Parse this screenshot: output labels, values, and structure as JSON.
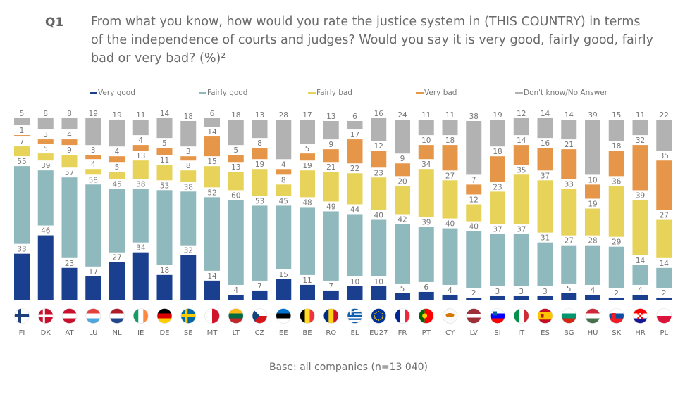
{
  "question": {
    "number": "Q1",
    "text": "From what you know, how would you rate the justice system in (THIS COUNTRY) in terms of the independence of courts and judges? Would you say it is very good, fairly good, fairly bad or very bad? (%)²"
  },
  "footnote": "Base: all companies (n=13 040)",
  "colors": {
    "very_good": "#1a3f8f",
    "fairly_good": "#8fb9bd",
    "fairly_bad": "#e8d35a",
    "very_bad": "#e69648",
    "dont_know": "#b2b2b2",
    "label": "#777777"
  },
  "chart_data": {
    "type": "bar",
    "stacked": true,
    "title": "From what you know, how would you rate the justice system in (THIS COUNTRY) in terms of the independence of courts and judges? Would you say it is very good, fairly good, fairly bad or very bad? (%)",
    "xlabel": "",
    "ylabel": "%",
    "ylim": [
      0,
      100
    ],
    "grid": false,
    "legend_position": "top",
    "categories": [
      "FI",
      "DK",
      "AT",
      "LU",
      "NL",
      "IE",
      "DE",
      "SE",
      "MT",
      "LT",
      "CZ",
      "EE",
      "BE",
      "RO",
      "EL",
      "EU27",
      "FR",
      "PT",
      "CY",
      "LV",
      "SI",
      "IT",
      "ES",
      "BG",
      "HU",
      "SK",
      "HR",
      "PL"
    ],
    "series": [
      {
        "name": "Very good",
        "key": "very_good",
        "values": [
          33,
          46,
          23,
          17,
          27,
          34,
          18,
          32,
          14,
          4,
          7,
          15,
          11,
          7,
          10,
          10,
          5,
          6,
          4,
          2,
          3,
          3,
          3,
          5,
          4,
          2,
          4,
          2
        ]
      },
      {
        "name": "Fairly good",
        "key": "fairly_good",
        "values": [
          55,
          39,
          57,
          58,
          45,
          38,
          53,
          38,
          52,
          60,
          53,
          45,
          48,
          49,
          44,
          40,
          42,
          39,
          40,
          40,
          37,
          37,
          31,
          27,
          28,
          29,
          14,
          14
        ]
      },
      {
        "name": "Fairly bad",
        "key": "fairly_bad",
        "values": [
          7,
          5,
          9,
          4,
          5,
          13,
          11,
          8,
          15,
          13,
          19,
          8,
          19,
          21,
          22,
          23,
          20,
          34,
          27,
          12,
          23,
          35,
          37,
          33,
          19,
          36,
          39,
          27
        ]
      },
      {
        "name": "Very bad",
        "key": "very_bad",
        "values": [
          1,
          3,
          4,
          3,
          4,
          4,
          5,
          3,
          14,
          5,
          8,
          4,
          5,
          9,
          17,
          12,
          9,
          10,
          18,
          7,
          18,
          14,
          16,
          21,
          10,
          18,
          32,
          35
        ]
      },
      {
        "name": "Don't know/No Answer",
        "key": "dont_know",
        "values": [
          5,
          8,
          8,
          19,
          19,
          11,
          14,
          18,
          6,
          18,
          13,
          28,
          17,
          13,
          6,
          16,
          24,
          11,
          11,
          38,
          19,
          12,
          14,
          14,
          39,
          15,
          11,
          22
        ]
      }
    ]
  },
  "flags": {
    "FI": {
      "icon": "finland-flag-icon"
    },
    "DK": {
      "icon": "denmark-flag-icon"
    },
    "AT": {
      "icon": "austria-flag-icon"
    },
    "LU": {
      "icon": "luxembourg-flag-icon"
    },
    "NL": {
      "icon": "netherlands-flag-icon"
    },
    "IE": {
      "icon": "ireland-flag-icon"
    },
    "DE": {
      "icon": "germany-flag-icon"
    },
    "SE": {
      "icon": "sweden-flag-icon"
    },
    "MT": {
      "icon": "malta-flag-icon"
    },
    "LT": {
      "icon": "lithuania-flag-icon"
    },
    "CZ": {
      "icon": "czechia-flag-icon"
    },
    "EE": {
      "icon": "estonia-flag-icon"
    },
    "BE": {
      "icon": "belgium-flag-icon"
    },
    "RO": {
      "icon": "romania-flag-icon"
    },
    "EL": {
      "icon": "greece-flag-icon"
    },
    "EU27": {
      "icon": "eu-flag-icon"
    },
    "FR": {
      "icon": "france-flag-icon"
    },
    "PT": {
      "icon": "portugal-flag-icon"
    },
    "CY": {
      "icon": "cyprus-flag-icon"
    },
    "LV": {
      "icon": "latvia-flag-icon"
    },
    "SI": {
      "icon": "slovenia-flag-icon"
    },
    "IT": {
      "icon": "italy-flag-icon"
    },
    "ES": {
      "icon": "spain-flag-icon"
    },
    "BG": {
      "icon": "bulgaria-flag-icon"
    },
    "HU": {
      "icon": "hungary-flag-icon"
    },
    "SK": {
      "icon": "slovakia-flag-icon"
    },
    "HR": {
      "icon": "croatia-flag-icon"
    },
    "PL": {
      "icon": "poland-flag-icon"
    }
  }
}
